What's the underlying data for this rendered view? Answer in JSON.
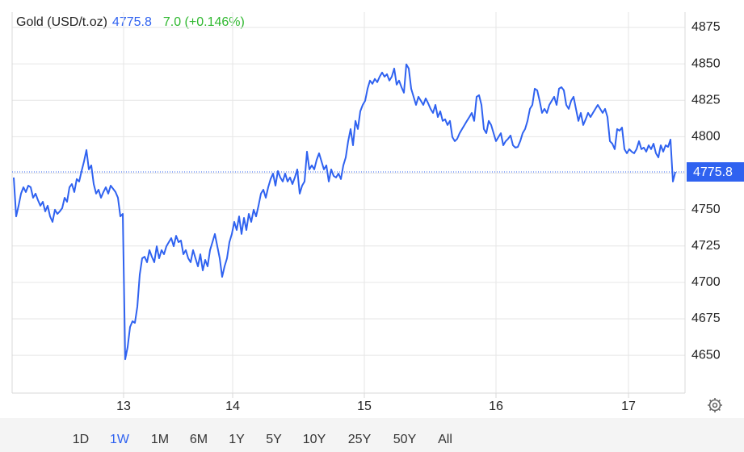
{
  "chart_data": {
    "type": "line",
    "title": "Gold (USD/t.oz)",
    "last_price": 4775.8,
    "change": "7.0 (+0.146%)",
    "color": "#2f62f0",
    "values": [
      4772.0,
      4745.3,
      4752.6,
      4760.9,
      4765.3,
      4762.0,
      4766.4,
      4765.3,
      4758.1,
      4760.9,
      4756.4,
      4752.6,
      4755.3,
      4748.7,
      4752.6,
      4745.3,
      4741.5,
      4749.8,
      4747.0,
      4748.7,
      4750.9,
      4758.1,
      4755.3,
      4765.3,
      4767.5,
      4762.0,
      4770.9,
      4769.2,
      4776.4,
      4783.0,
      4790.8,
      4777.5,
      4780.3,
      4767.5,
      4760.9,
      4763.6,
      4758.1,
      4762.0,
      4765.3,
      4760.9,
      4766.4,
      4764.2,
      4762.0,
      4758.1,
      4745.3,
      4747.0,
      4647.2,
      4655.6,
      4669.4,
      4673.3,
      4672.2,
      4683.3,
      4705.4,
      4716.5,
      4717.6,
      4713.8,
      4722.1,
      4717.6,
      4713.8,
      4724.8,
      4716.5,
      4722.1,
      4719.3,
      4724.8,
      4727.6,
      4730.4,
      4724.8,
      4732.0,
      4727.6,
      4728.7,
      4719.3,
      4722.1,
      4716.5,
      4713.8,
      4722.1,
      4716.5,
      4711.0,
      4719.3,
      4708.2,
      4715.4,
      4711.0,
      4722.1,
      4727.6,
      4733.2,
      4724.8,
      4716.5,
      4703.8,
      4711.0,
      4716.5,
      4727.6,
      4733.2,
      4741.5,
      4735.9,
      4745.3,
      4733.2,
      4744.2,
      4735.9,
      4747.0,
      4741.5,
      4749.8,
      4745.3,
      4752.6,
      4760.9,
      4763.6,
      4758.1,
      4765.3,
      4770.9,
      4774.7,
      4766.4,
      4776.4,
      4772.0,
      4769.2,
      4774.7,
      4769.2,
      4772.0,
      4767.5,
      4772.0,
      4777.5,
      4760.9,
      4766.4,
      4769.2,
      4789.7,
      4777.5,
      4780.3,
      4777.5,
      4784.1,
      4788.6,
      4783.0,
      4777.5,
      4780.3,
      4769.2,
      4777.5,
      4773.1,
      4772.0,
      4774.7,
      4770.9,
      4780.3,
      4785.8,
      4796.9,
      4805.2,
      4794.1,
      4810.8,
      4805.2,
      4817.4,
      4821.8,
      4824.6,
      4832.9,
      4838.5,
      4836.3,
      4839.6,
      4837.4,
      4841.2,
      4844.0,
      4841.2,
      4842.9,
      4838.5,
      4841.2,
      4846.8,
      4835.7,
      4838.5,
      4834.0,
      4830.2,
      4849.6,
      4846.8,
      4832.9,
      4827.4,
      4821.8,
      4827.4,
      4824.6,
      4821.8,
      4826.3,
      4822.9,
      4819.1,
      4816.3,
      4821.8,
      4813.5,
      4817.4,
      4810.8,
      4811.9,
      4808.0,
      4810.8,
      4799.7,
      4796.9,
      4798.6,
      4802.4,
      4805.2,
      4808.0,
      4810.8,
      4813.5,
      4816.3,
      4810.8,
      4827.4,
      4828.5,
      4821.8,
      4805.2,
      4802.4,
      4810.8,
      4808.0,
      4802.4,
      4796.9,
      4799.7,
      4802.4,
      4794.1,
      4796.9,
      4798.6,
      4800.8,
      4794.1,
      4792.5,
      4793.0,
      4796.9,
      4802.4,
      4805.2,
      4810.8,
      4819.1,
      4821.8,
      4832.9,
      4831.8,
      4824.6,
      4816.3,
      4819.1,
      4816.3,
      4821.8,
      4824.6,
      4827.4,
      4821.8,
      4832.9,
      4834.0,
      4831.8,
      4821.8,
      4819.1,
      4824.6,
      4827.4,
      4819.1,
      4810.8,
      4816.3,
      4808.0,
      4811.9,
      4816.3,
      4813.5,
      4816.3,
      4819.1,
      4821.8,
      4819.1,
      4816.3,
      4819.1,
      4813.5,
      4796.9,
      4795.2,
      4791.4,
      4805.2,
      4804.1,
      4806.3,
      4791.4,
      4788.6,
      4791.4,
      4789.7,
      4788.6,
      4791.4,
      4796.9,
      4791.4,
      4792.5,
      4789.7,
      4794.1,
      4791.4,
      4795.2,
      4788.6,
      4785.8,
      4794.1,
      4789.7,
      4794.1,
      4793.0,
      4798.0,
      4769.2,
      4775.8
    ],
    "xlim": [
      -0.67,
      277
    ],
    "xticks": [
      {
        "value": 45.33,
        "label": "13"
      },
      {
        "value": 90.33,
        "label": "14"
      },
      {
        "value": 144.67,
        "label": "15"
      },
      {
        "value": 199,
        "label": "16"
      },
      {
        "value": 253.67,
        "label": "17"
      }
    ],
    "ylim": [
      4624,
      4885.5
    ],
    "yticks": [
      4650,
      4675,
      4700,
      4725,
      4750,
      4775,
      4800,
      4825,
      4850,
      4875
    ],
    "grid": true
  },
  "range_selector": {
    "options": [
      "1D",
      "1W",
      "1M",
      "6M",
      "1Y",
      "5Y",
      "10Y",
      "25Y",
      "50Y",
      "All"
    ],
    "selected": 1
  }
}
